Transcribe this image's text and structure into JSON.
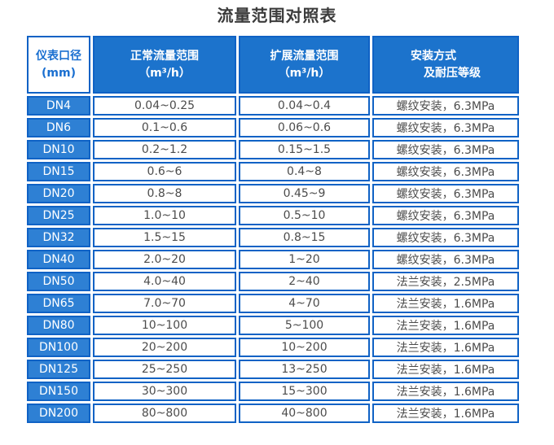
{
  "title": "流量范围对照表",
  "colors": {
    "title_text": "#3b3b3b",
    "border_blue": "#0f62c5",
    "header_bg": "#1c73cc",
    "dn_bg": "#2e80d4",
    "corner_text": "#1a6fd0",
    "value_text": "#4c4c4c"
  },
  "chart_data": {
    "type": "table",
    "title": "流量范围对照表",
    "headers": [
      {
        "line1": "仪表口径",
        "line2": "(mm)"
      },
      {
        "line1": "正常流量范围",
        "line2": "（m³/h）"
      },
      {
        "line1": "扩展流量范围",
        "line2": "（m³/h）"
      },
      {
        "line1": "安装方式",
        "line2": "及耐压等级"
      }
    ],
    "rows": [
      [
        "DN4",
        "0.04~0.25",
        "0.04~0.4",
        "螺纹安装，6.3MPa"
      ],
      [
        "DN6",
        "0.1~0.6",
        "0.06~0.6",
        "螺纹安装，6.3MPa"
      ],
      [
        "DN10",
        "0.2~1.2",
        "0.15~1.5",
        "螺纹安装，6.3MPa"
      ],
      [
        "DN15",
        "0.6~6",
        "0.4~8",
        "螺纹安装，6.3MPa"
      ],
      [
        "DN20",
        "0.8~8",
        "0.45~9",
        "螺纹安装，6.3MPa"
      ],
      [
        "DN25",
        "1.0~10",
        "0.5~10",
        "螺纹安装，6.3MPa"
      ],
      [
        "DN32",
        "1.5~15",
        "0.8~15",
        "螺纹安装，6.3MPa"
      ],
      [
        "DN40",
        "2.0~20",
        "1~20",
        "螺纹安装，6.3MPa"
      ],
      [
        "DN50",
        "4.0~40",
        "2~40",
        "法兰安装，2.5MPa"
      ],
      [
        "DN65",
        "7.0~70",
        "4~70",
        "法兰安装，1.6MPa"
      ],
      [
        "DN80",
        "10~100",
        "5~100",
        "法兰安装，1.6MPa"
      ],
      [
        "DN100",
        "20~200",
        "10~200",
        "法兰安装，1.6MPa"
      ],
      [
        "DN125",
        "25~250",
        "13~250",
        "法兰安装，1.6MPa"
      ],
      [
        "DN150",
        "30~300",
        "15~300",
        "法兰安装，1.6MPa"
      ],
      [
        "DN200",
        "80~800",
        "40~800",
        "法兰安装，1.6MPa"
      ]
    ]
  }
}
